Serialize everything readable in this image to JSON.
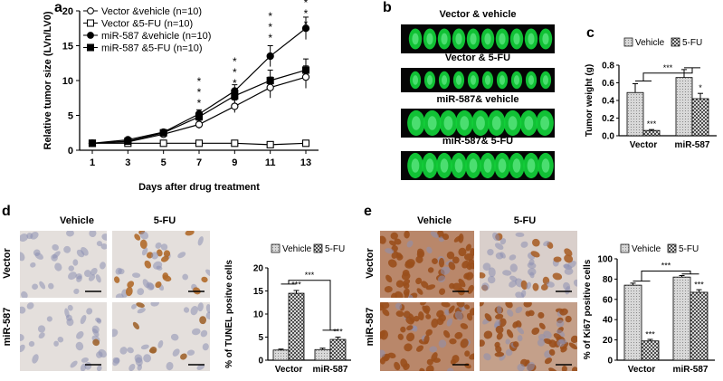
{
  "panels": {
    "a": "a",
    "b": "b",
    "c": "c",
    "d": "d",
    "e": "e"
  },
  "chart_data": [
    {
      "type": "line",
      "ylabel": "Relative tumor size (LVn/LV0)",
      "xlabel": "Days after drug treatment",
      "x": [
        1,
        3,
        5,
        7,
        9,
        11,
        13
      ],
      "ylim": [
        0,
        20
      ],
      "yticks": [
        0,
        5,
        10,
        15,
        20
      ],
      "legend_position": "top-left",
      "series": [
        {
          "name": "Vector &vehicle (n=10)",
          "marker": "circle-open",
          "values": [
            1,
            1.2,
            2.3,
            3.7,
            6.3,
            9,
            10.5
          ]
        },
        {
          "name": "Vector &5-FU (n=10)",
          "marker": "square-open",
          "values": [
            1,
            1,
            1,
            1,
            1,
            0.8,
            1
          ]
        },
        {
          "name": "miR-587 &vehicle (n=10)",
          "marker": "circle-filled",
          "values": [
            1,
            1.5,
            2.6,
            5.2,
            8.5,
            13.5,
            17.5
          ]
        },
        {
          "name": "miR-587 &5-FU (n=10)",
          "marker": "square-filled",
          "values": [
            1,
            1.3,
            2.5,
            4.8,
            7.8,
            10,
            11.5
          ]
        }
      ],
      "errors": [
        0.1,
        0.2,
        0.3,
        0.6,
        0.9,
        1.5,
        1.6
      ],
      "annotations": [
        "*",
        "*",
        "*"
      ]
    },
    {
      "type": "bar",
      "ylabel": "Tumor weight (g)",
      "categories": [
        "Vector",
        "miR-587"
      ],
      "ylim": [
        0,
        0.8
      ],
      "yticks": [
        "0.0",
        "0.2",
        "0.4",
        "0.6",
        "0.8"
      ],
      "series": [
        {
          "name": "Vehicle",
          "values": [
            0.49,
            0.66
          ],
          "errors": [
            0.1,
            0.09
          ]
        },
        {
          "name": "5-FU",
          "values": [
            0.06,
            0.42
          ],
          "errors": [
            0.01,
            0.06
          ]
        }
      ],
      "annotations": [
        "***",
        "***",
        "*"
      ]
    },
    {
      "type": "bar",
      "ylabel": "% of TUNEL positve cells",
      "categories": [
        "Vector",
        "miR-587"
      ],
      "ylim": [
        0,
        20
      ],
      "yticks": [
        0,
        5,
        10,
        15,
        20
      ],
      "series": [
        {
          "name": "Vehicle",
          "values": [
            2.2,
            2.3
          ],
          "errors": [
            0.2,
            0.3
          ]
        },
        {
          "name": "5-FU",
          "values": [
            14.5,
            4.5
          ],
          "errors": [
            0.6,
            0.5
          ]
        }
      ],
      "annotations": [
        "***",
        "***",
        "***"
      ]
    },
    {
      "type": "bar",
      "ylabel": "% of Ki67 positive cells",
      "categories": [
        "Vector",
        "miR-587"
      ],
      "ylim": [
        0,
        100
      ],
      "yticks": [
        0,
        20,
        40,
        60,
        80,
        100
      ],
      "series": [
        {
          "name": "Vehicle",
          "values": [
            74,
            82
          ],
          "errors": [
            2,
            1.5
          ]
        },
        {
          "name": "5-FU",
          "values": [
            19,
            67
          ],
          "errors": [
            1.5,
            2.5
          ]
        }
      ],
      "annotations": [
        "***",
        "***",
        "***"
      ]
    }
  ],
  "panel_b": {
    "labels": [
      "Vector & vehicle",
      "Vector & 5-FU",
      "miR-587& vehicle",
      "miR-587& 5-FU"
    ],
    "tumor_counts": [
      10,
      10,
      9,
      10
    ]
  },
  "panel_d": {
    "col_titles": [
      "Vehicle",
      "5-FU"
    ],
    "row_titles": [
      "Vector",
      "miR-587"
    ]
  },
  "panel_e": {
    "col_titles": [
      "Vehicle",
      "5-FU"
    ],
    "row_titles": [
      "Vector",
      "miR-587"
    ]
  },
  "colors": {
    "ihc_light": "#e4dfdc",
    "ihc_dark": "#b9876a",
    "bar_hatch": "#444444",
    "tumor_green": "#12d13a"
  }
}
